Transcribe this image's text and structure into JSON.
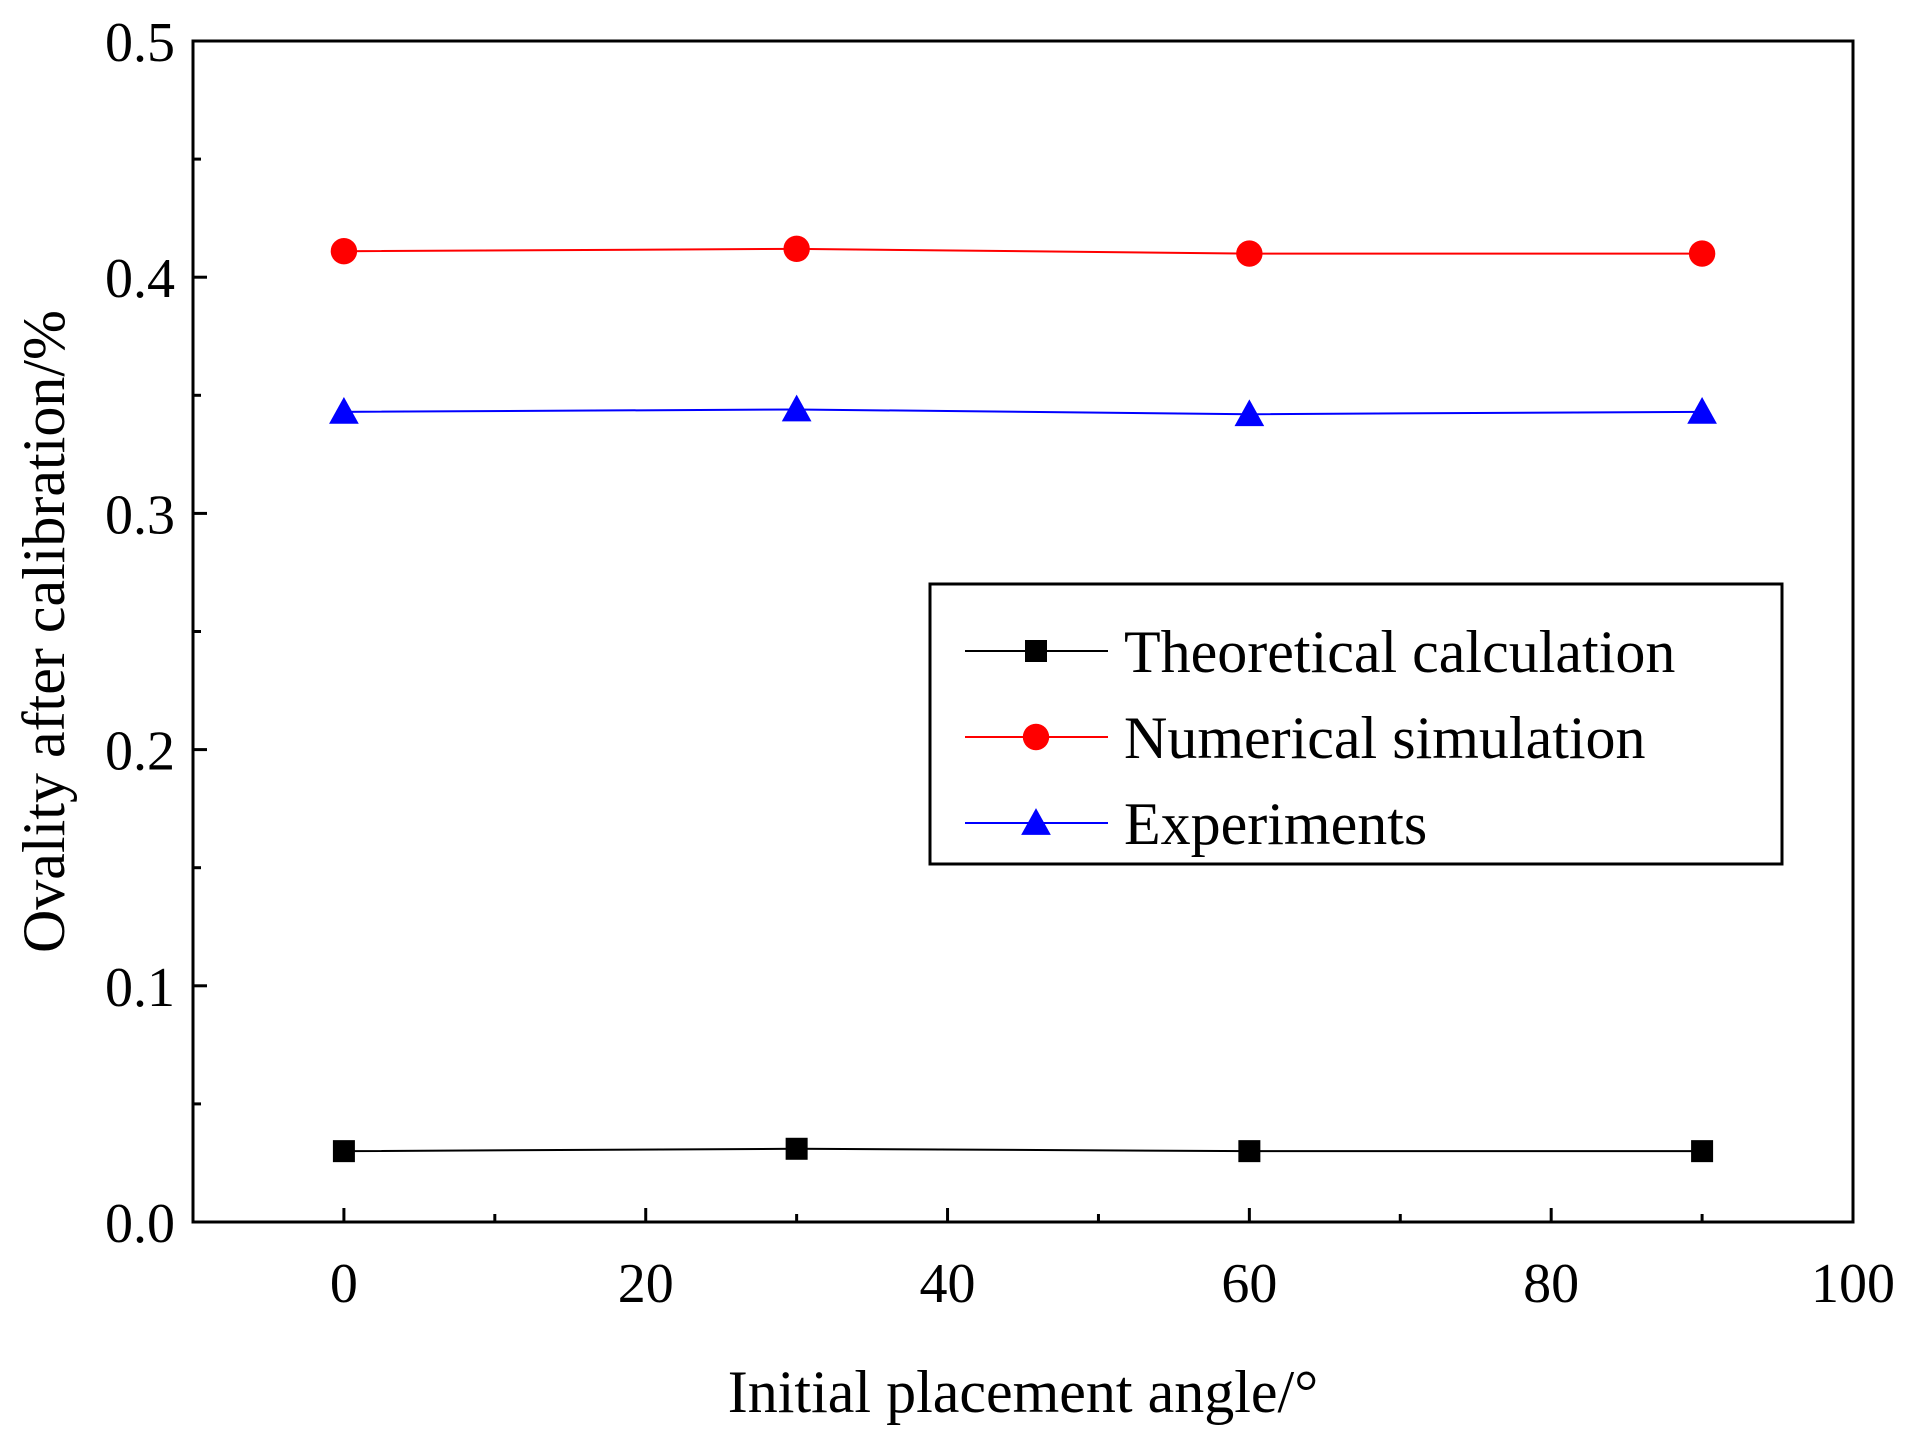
{
  "chart_data": {
    "type": "line",
    "title": "",
    "xlabel": "Initial placement angle/°",
    "ylabel": "Ovality after calibration/%",
    "xlim": [
      -10,
      100
    ],
    "ylim": [
      0.0,
      0.5
    ],
    "xticks": [
      0,
      20,
      40,
      60,
      80,
      100
    ],
    "xtick_labels": [
      "0",
      "20",
      "40",
      "60",
      "80",
      "100"
    ],
    "yticks": [
      0.0,
      0.1,
      0.2,
      0.3,
      0.4,
      0.5
    ],
    "ytick_labels": [
      "0.0",
      "0.1",
      "0.2",
      "0.3",
      "0.4",
      "0.5"
    ],
    "grid": false,
    "legend_position": "center-right",
    "x": [
      0,
      30,
      60,
      90
    ],
    "series": [
      {
        "name": "Theoretical calculation",
        "color": "#000000",
        "marker": "square",
        "values": [
          0.03,
          0.031,
          0.03,
          0.03
        ]
      },
      {
        "name": "Numerical simulation",
        "color": "#ff0000",
        "marker": "circle",
        "values": [
          0.411,
          0.412,
          0.41,
          0.41
        ]
      },
      {
        "name": "Experiments",
        "color": "#0000ff",
        "marker": "triangle",
        "values": [
          0.343,
          0.344,
          0.342,
          0.343
        ]
      }
    ]
  }
}
